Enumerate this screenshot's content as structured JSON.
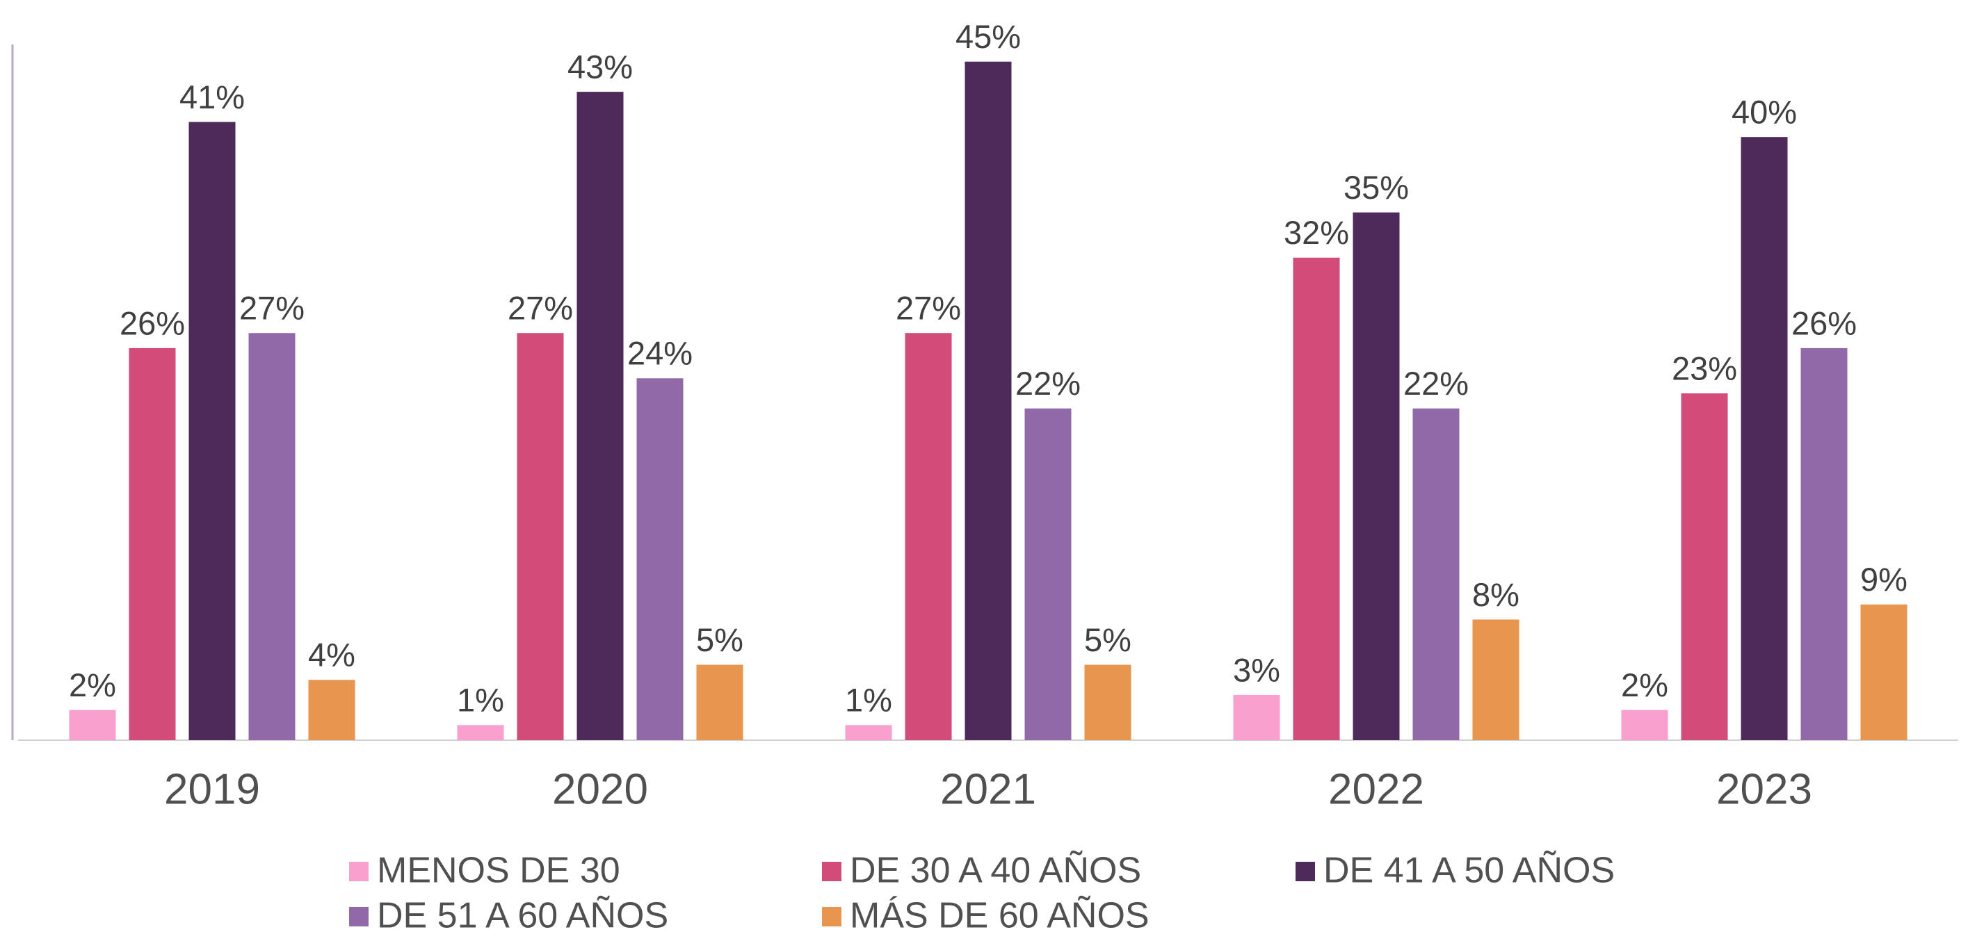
{
  "chart_data": {
    "type": "bar",
    "categories": [
      "2019",
      "2020",
      "2021",
      "2022",
      "2023"
    ],
    "series": [
      {
        "name": "MENOS DE 30",
        "color": "#f9a0cf",
        "values": [
          2,
          1,
          1,
          3,
          2
        ],
        "value_labels": [
          "2%",
          "1%",
          "1%",
          "3%",
          "2%"
        ]
      },
      {
        "name": "DE 30 A 40 AÑOS",
        "color": "#d24b79",
        "values": [
          26,
          27,
          27,
          32,
          23
        ],
        "value_labels": [
          "26%",
          "27%",
          "27%",
          "32%",
          "23%"
        ]
      },
      {
        "name": "DE 41 A 50 AÑOS",
        "color": "#4e2a5a",
        "values": [
          41,
          43,
          45,
          35,
          40
        ],
        "value_labels": [
          "41%",
          "43%",
          "45%",
          "35%",
          "40%"
        ]
      },
      {
        "name": "DE 51 A 60 AÑOS",
        "color": "#9169a8",
        "values": [
          27,
          24,
          22,
          22,
          26
        ],
        "value_labels": [
          "27%",
          "24%",
          "22%",
          "22%",
          "26%"
        ]
      },
      {
        "name": "MÁS DE 60 AÑOS",
        "color": "#e8964f",
        "values": [
          4,
          5,
          5,
          8,
          9
        ],
        "value_labels": [
          "4%",
          "5%",
          "5%",
          "8%",
          "9%"
        ]
      }
    ],
    "ylim": [
      0,
      46
    ]
  }
}
